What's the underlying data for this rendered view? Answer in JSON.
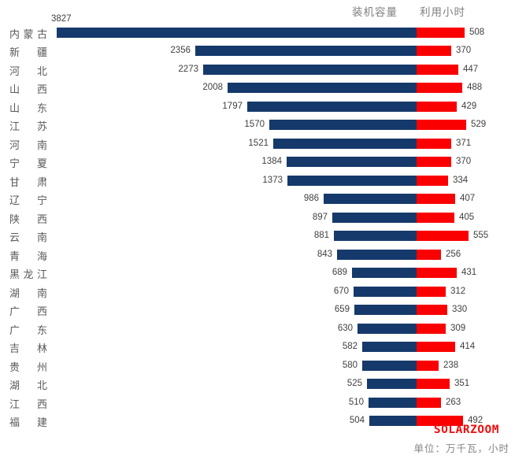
{
  "footer": {
    "watermark": "SOLARZOOM",
    "unit_note": "单位：万千瓦，小时"
  },
  "colors": {
    "capacity_bar": "#16396B",
    "hours_bar": "#FB0000",
    "watermark_red": "#F20D0D",
    "header_gray": "#7F7F7F",
    "value_text": "#3F3F3F",
    "category_text": "#595959"
  },
  "chart_data": {
    "type": "bar",
    "subtype": "horizontal-diverging",
    "title": "",
    "xlabel": "",
    "ylabel": "",
    "grid": false,
    "legend_position": "top-center",
    "unit_note": "单位：万千瓦，小时",
    "categories": [
      "内蒙古",
      "新疆",
      "河北",
      "山西",
      "山东",
      "江苏",
      "河南",
      "宁夏",
      "甘肃",
      "辽宁",
      "陕西",
      "云南",
      "青海",
      "黑龙江",
      "湖南",
      "广西",
      "广东",
      "吉林",
      "贵州",
      "湖北",
      "江西",
      "福建"
    ],
    "series": [
      {
        "name": "装机容量",
        "direction": "left",
        "color": "#16396B",
        "values": [
          3827,
          2356,
          2273,
          2008,
          1797,
          1570,
          1521,
          1384,
          1373,
          986,
          897,
          881,
          843,
          689,
          670,
          659,
          630,
          582,
          580,
          525,
          510,
          504
        ]
      },
      {
        "name": "利用小时",
        "direction": "right",
        "color": "#FB0000",
        "values": [
          508,
          370,
          447,
          488,
          429,
          529,
          371,
          370,
          334,
          407,
          405,
          555,
          256,
          431,
          312,
          330,
          309,
          414,
          238,
          351,
          263,
          492
        ]
      }
    ]
  }
}
